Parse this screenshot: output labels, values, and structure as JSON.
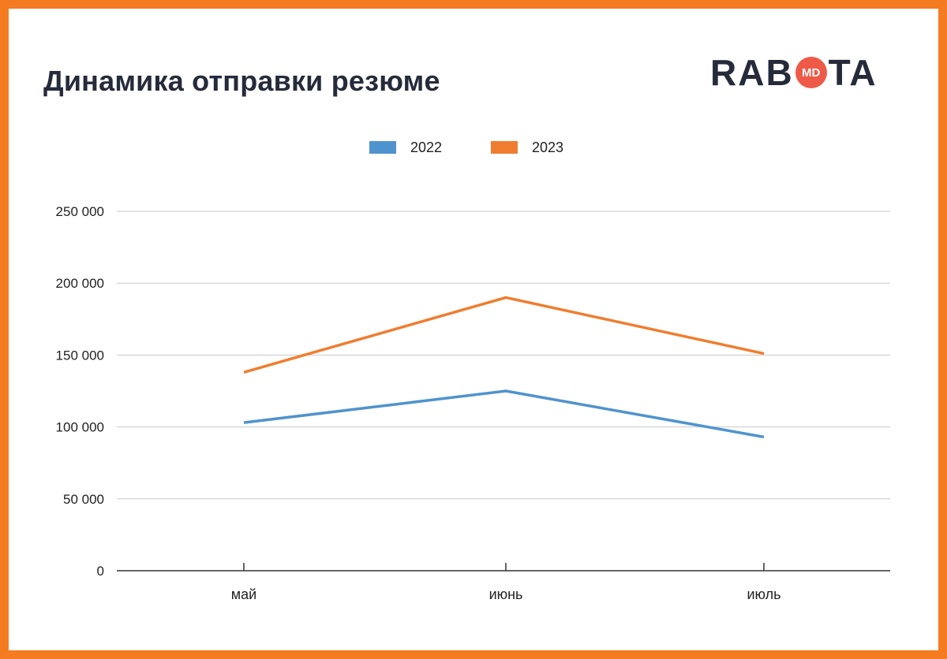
{
  "title": "Динамика отправки резюме",
  "logo": {
    "left": "RAB",
    "badge": "MD",
    "right": "TA"
  },
  "colors": {
    "series_2022": "#4f93ce",
    "series_2023": "#f07d2f",
    "frame": "#f47b20",
    "grid": "#c8c8c8"
  },
  "chart_data": {
    "type": "line",
    "categories": [
      "май",
      "июнь",
      "июль"
    ],
    "series": [
      {
        "name": "2022",
        "values": [
          103000,
          125000,
          93000
        ]
      },
      {
        "name": "2023",
        "values": [
          138000,
          190000,
          151000
        ]
      }
    ],
    "ylim": [
      0,
      250000
    ],
    "yticks": [
      0,
      50000,
      100000,
      150000,
      200000,
      250000
    ],
    "ytick_labels": [
      "0",
      "50 000",
      "100 000",
      "150 000",
      "200 000",
      "250 000"
    ],
    "grid": true,
    "legend": "top-center"
  }
}
